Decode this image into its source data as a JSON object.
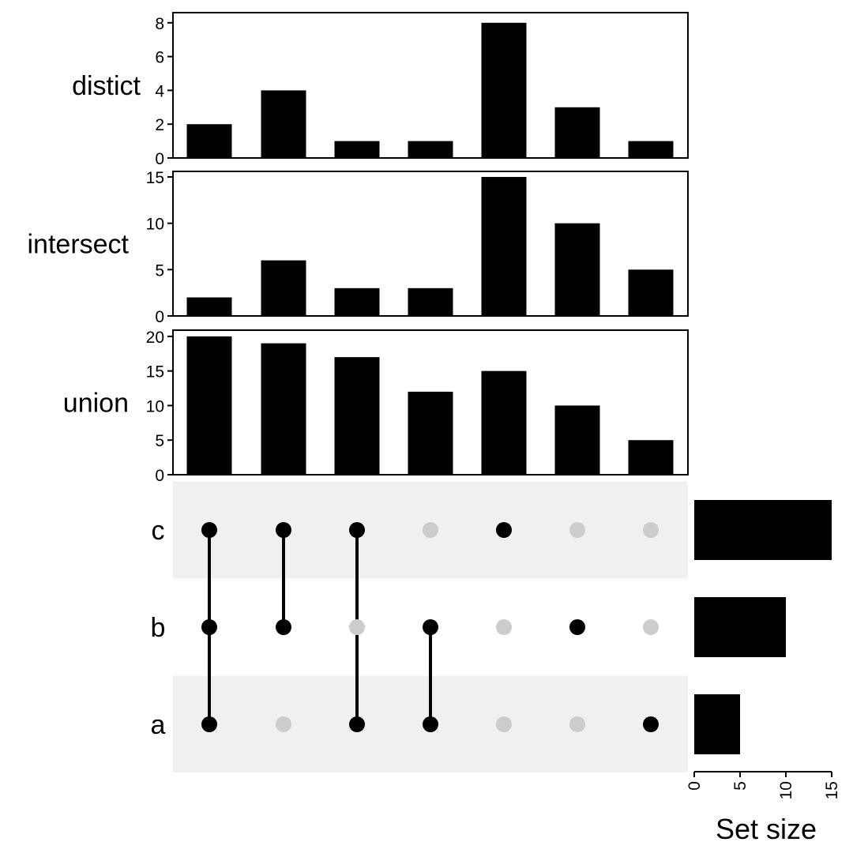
{
  "chart_data": {
    "type": "bar",
    "sets": [
      "c",
      "b",
      "a"
    ],
    "combinations": [
      [
        "a",
        "b",
        "c"
      ],
      [
        "b",
        "c"
      ],
      [
        "a",
        "c"
      ],
      [
        "a",
        "b"
      ],
      [
        "c"
      ],
      [
        "b"
      ],
      [
        "a"
      ]
    ],
    "panels": [
      {
        "label": "distict",
        "values": [
          2,
          4,
          1,
          1,
          8,
          3,
          1
        ],
        "ylim": [
          0,
          8.6
        ],
        "ticks": [
          0,
          2,
          4,
          6,
          8
        ]
      },
      {
        "label": "intersect",
        "values": [
          2,
          6,
          3,
          3,
          15,
          10,
          5
        ],
        "ylim": [
          0,
          15.6
        ],
        "ticks": [
          0,
          5,
          10,
          15
        ]
      },
      {
        "label": "union",
        "values": [
          20,
          19,
          17,
          12,
          15,
          10,
          5
        ],
        "ylim": [
          0,
          20.9
        ],
        "ticks": [
          0,
          5,
          10,
          15,
          20
        ]
      }
    ],
    "set_size": {
      "xlabel": "Set size",
      "values": {
        "c": 15,
        "b": 10,
        "a": 5
      },
      "xlim": [
        0,
        15.6
      ],
      "ticks": [
        0,
        5,
        10,
        15
      ]
    },
    "colors": {
      "bar": "#000000",
      "dot_active": "#000000",
      "dot_inactive": "#cccccc",
      "stripe": "#f0f0f0"
    }
  }
}
